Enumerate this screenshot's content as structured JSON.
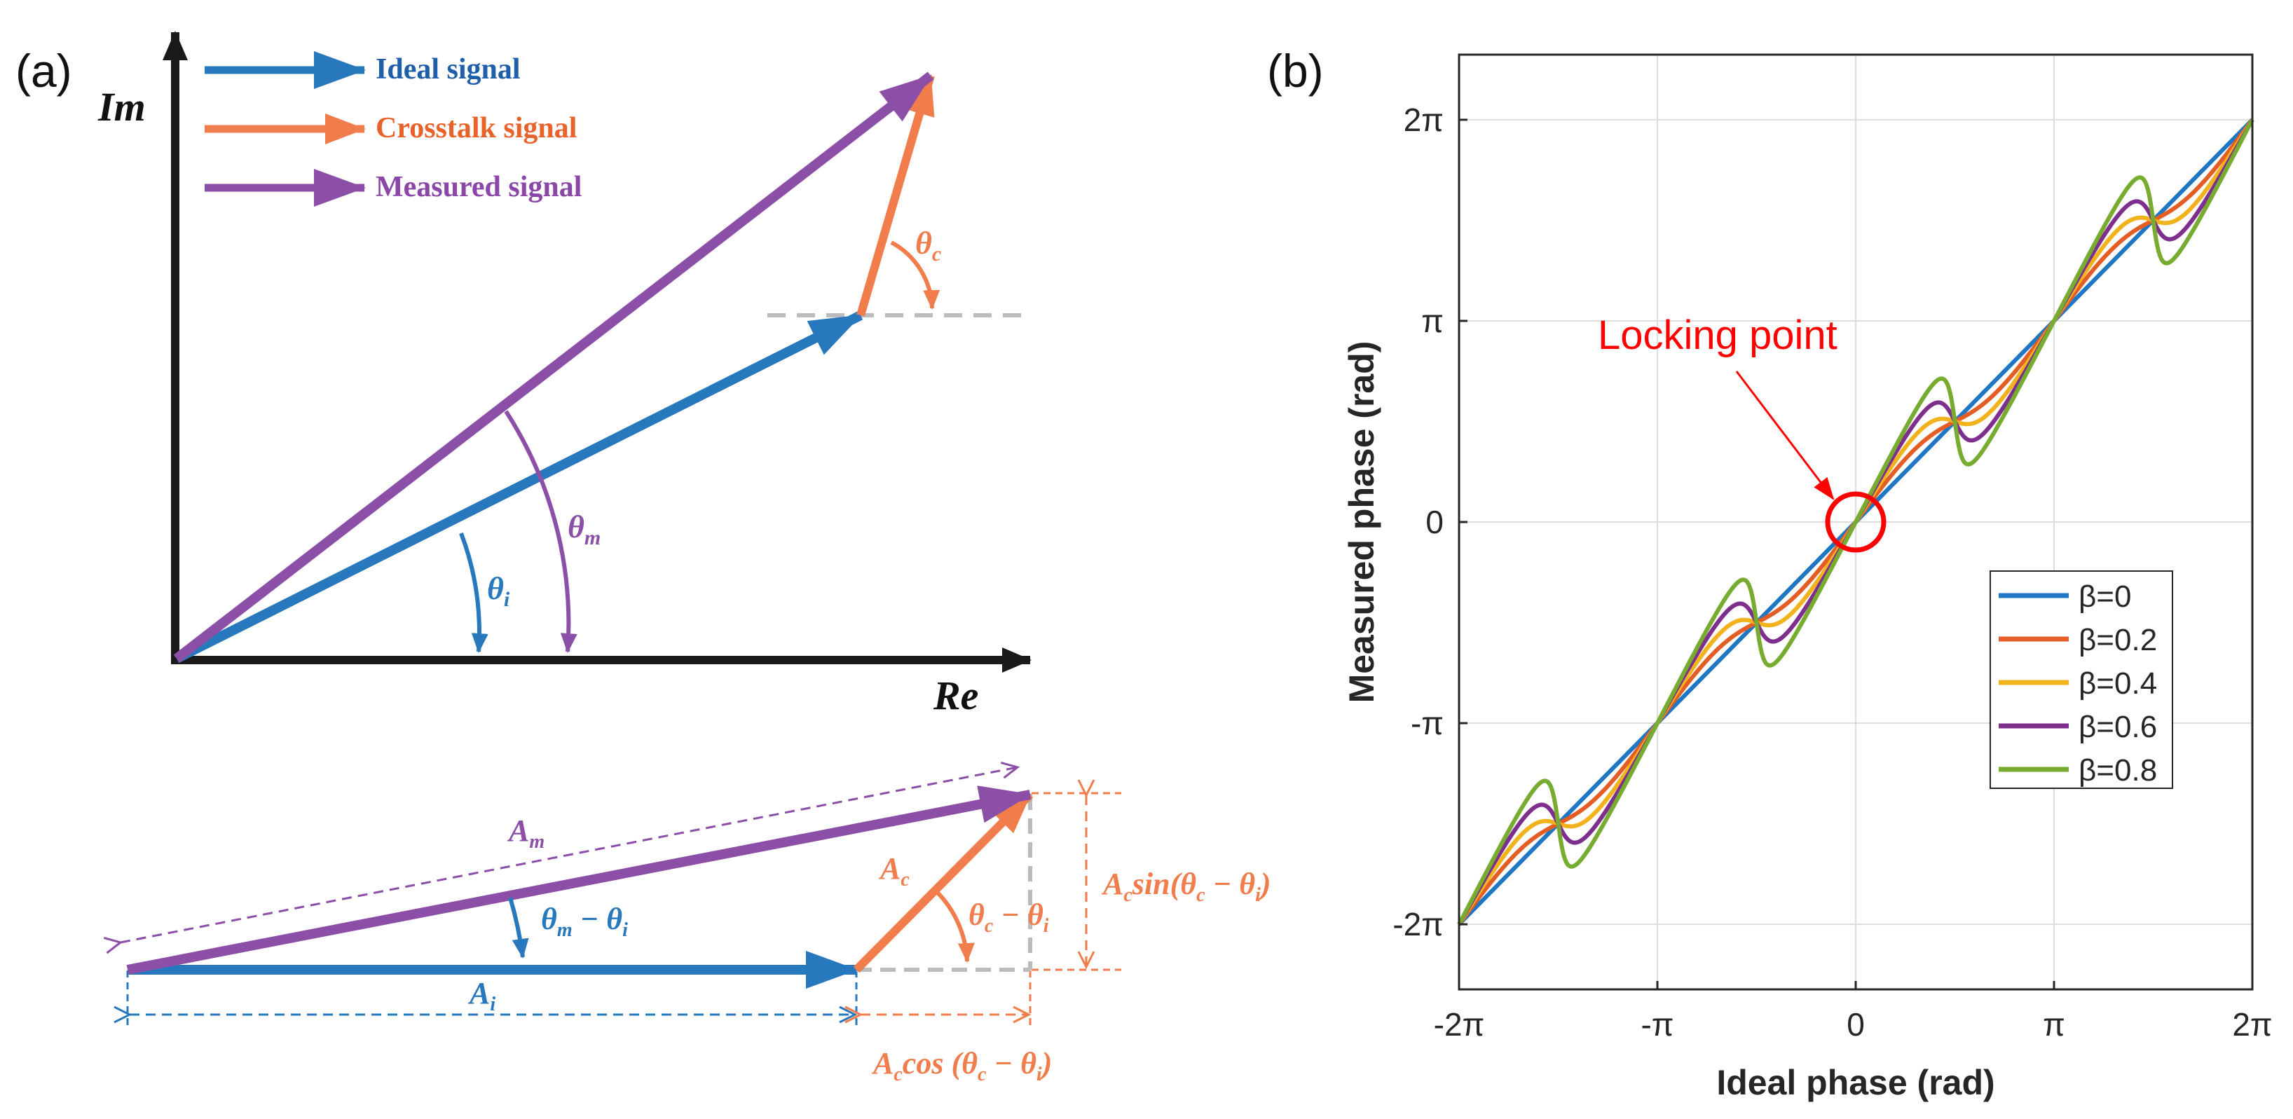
{
  "colors": {
    "ideal": "#2878BE",
    "crosstalk": "#F07D4B",
    "measured": "#8C4FA8",
    "axis": "#1a1a1a",
    "grid": "#dddddd",
    "dashed_gray": "#bbbbbb",
    "locking": "#ff0000",
    "legend_ideal_text": "#1f5ea8",
    "legend_crosstalk_text": "#e8622a",
    "legend_measured_text": "#8a47a8"
  },
  "panel_a": {
    "label": "(a)",
    "axis_im": "Im",
    "axis_re": "Re",
    "legend": [
      {
        "label": "Ideal signal",
        "color_key": "ideal"
      },
      {
        "label": "Crosstalk signal",
        "color_key": "crosstalk"
      },
      {
        "label": "Measured signal",
        "color_key": "measured"
      }
    ],
    "angles": {
      "theta_i": {
        "base": "θ",
        "sub": "i"
      },
      "theta_m": {
        "base": "θ",
        "sub": "m"
      },
      "theta_c": {
        "base": "θ",
        "sub": "c"
      }
    },
    "decomposition": {
      "A_m": {
        "base": "A",
        "sub": "m"
      },
      "A_i": {
        "base": "A",
        "sub": "i"
      },
      "A_c": {
        "base": "A",
        "sub": "c"
      },
      "theta_m_minus_theta_i": {
        "a": "θ",
        "a_sub": "m",
        "mid": " − ",
        "b": "θ",
        "b_sub": "i"
      },
      "theta_c_minus_theta_i": {
        "a": "θ",
        "a_sub": "c",
        "mid": " − ",
        "b": "θ",
        "b_sub": "i"
      },
      "Ac_sin": {
        "pre": "A",
        "pre_sub": "c",
        "fn": "sin(",
        "a": "θ",
        "a_sub": "c",
        "mid": " − ",
        "b": "θ",
        "b_sub": "i",
        "post": ")"
      },
      "Ac_cos": {
        "pre": "A",
        "pre_sub": "c",
        "fn": "cos (",
        "a": "θ",
        "a_sub": "c",
        "mid": " − ",
        "b": "θ",
        "b_sub": "i",
        "post": ")"
      }
    }
  },
  "panel_b": {
    "label": "(b)",
    "annotation": "Locking point",
    "chart_data": {
      "type": "line",
      "xlabel": "Ideal phase (rad)",
      "ylabel": "Measured phase (rad)",
      "xlim": [
        -6.2832,
        6.2832
      ],
      "ylim": [
        -7.3,
        7.3
      ],
      "grid": true,
      "legend_position": "right-center",
      "x_ticks": [
        -6.2832,
        -3.1416,
        0,
        3.1416,
        6.2832
      ],
      "x_tick_labels": [
        "-2π",
        "-π",
        "0",
        "π",
        "2π"
      ],
      "y_ticks": [
        -6.2832,
        -3.1416,
        0,
        3.1416,
        6.2832
      ],
      "y_tick_labels": [
        "-2π",
        "-π",
        "0",
        "π",
        "2π"
      ],
      "model": "measured = ideal + atan2(β·sin(2·ideal), 1 + β·cos(2·ideal))",
      "series": [
        {
          "name": "β=0",
          "beta": 0.0,
          "color": "#1f77c4"
        },
        {
          "name": "β=0.2",
          "beta": 0.2,
          "color": "#e45d24"
        },
        {
          "name": "β=0.4",
          "beta": 0.4,
          "color": "#f2b21b"
        },
        {
          "name": "β=0.6",
          "beta": 0.6,
          "color": "#7e2f8e"
        },
        {
          "name": "β=0.8",
          "beta": 0.8,
          "color": "#77ac30"
        }
      ],
      "legend_symbol": "β",
      "locking_point": {
        "x": 0,
        "y": 0
      }
    }
  }
}
